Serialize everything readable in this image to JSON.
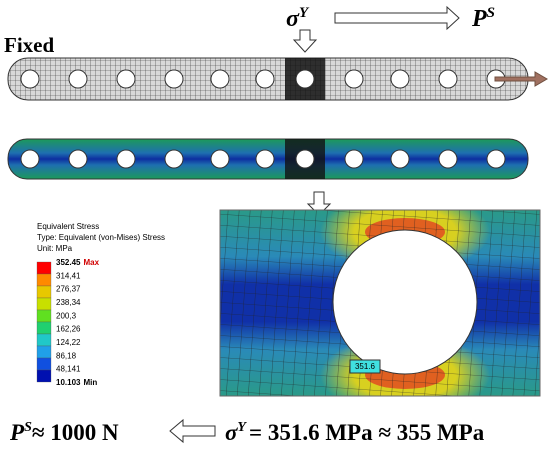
{
  "labels": {
    "fixed": "Fixed",
    "sigma": "σ",
    "sigma_sup": "Y",
    "p": "P",
    "p_sup": "S"
  },
  "legend": {
    "title": "Equivalent Stress",
    "type": "Type: Equivalent (von-Mises) Stress",
    "unit": "Unit: MPa",
    "max": {
      "value": "352.45",
      "label": "Max"
    },
    "levels": [
      "314,41",
      "276,37",
      "238,34",
      "200,3",
      "162,26",
      "124,22",
      "86,18",
      "48,141"
    ],
    "min": {
      "value": "10.103",
      "label": "Min"
    }
  },
  "probe": "351.6",
  "equation": {
    "left": {
      "p": "P",
      "sup": "S",
      "text": "≈ 1000 N"
    },
    "right": {
      "sigma": "σ",
      "sup": "Y",
      "text": "= 351.6 MPa ≈ 355 MPa"
    }
  }
}
